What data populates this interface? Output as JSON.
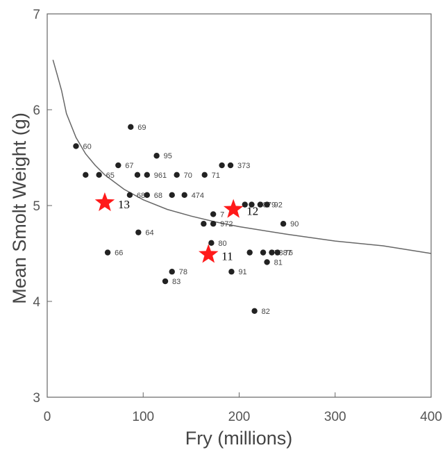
{
  "chart_data": {
    "type": "scatter",
    "xlabel": "Fry (millions)",
    "ylabel": "Mean Smolt Weight (g)",
    "xlim": [
      0,
      400
    ],
    "ylim": [
      3,
      7
    ],
    "x_ticks": [
      "0",
      "100",
      "200",
      "300",
      "400"
    ],
    "y_ticks": [
      "3",
      "4",
      "5",
      "6",
      "7"
    ],
    "grid": false,
    "points": [
      {
        "x": 87,
        "y": 5.82,
        "label": "69"
      },
      {
        "x": 30,
        "y": 5.62,
        "label": "60"
      },
      {
        "x": 114,
        "y": 5.52,
        "label": "95"
      },
      {
        "x": 74,
        "y": 5.42,
        "label": "67"
      },
      {
        "x": 182,
        "y": 5.42,
        "label": ""
      },
      {
        "x": 191,
        "y": 5.42,
        "label": "373"
      },
      {
        "x": 40,
        "y": 5.32,
        "label": ""
      },
      {
        "x": 54,
        "y": 5.32,
        "label": "65"
      },
      {
        "x": 94,
        "y": 5.32,
        "label": ""
      },
      {
        "x": 104,
        "y": 5.32,
        "label": "961"
      },
      {
        "x": 135,
        "y": 5.32,
        "label": "70"
      },
      {
        "x": 164,
        "y": 5.32,
        "label": "71"
      },
      {
        "x": 86,
        "y": 5.11,
        "label": "68"
      },
      {
        "x": 104,
        "y": 5.11,
        "label": "68"
      },
      {
        "x": 130,
        "y": 5.11,
        "label": ""
      },
      {
        "x": 143,
        "y": 5.11,
        "label": "474"
      },
      {
        "x": 206,
        "y": 5.01,
        "label": ""
      },
      {
        "x": 213,
        "y": 5.01,
        "label": "78"
      },
      {
        "x": 222,
        "y": 5.01,
        "label": "79"
      },
      {
        "x": 229,
        "y": 5.01,
        "label": "92"
      },
      {
        "x": 173,
        "y": 4.91,
        "label": "7"
      },
      {
        "x": 163,
        "y": 4.81,
        "label": ""
      },
      {
        "x": 173,
        "y": 4.81,
        "label": "972"
      },
      {
        "x": 246,
        "y": 4.81,
        "label": "90"
      },
      {
        "x": 95,
        "y": 4.72,
        "label": "64"
      },
      {
        "x": 171,
        "y": 4.61,
        "label": "80"
      },
      {
        "x": 63,
        "y": 4.51,
        "label": "66"
      },
      {
        "x": 211,
        "y": 4.51,
        "label": ""
      },
      {
        "x": 225,
        "y": 4.51,
        "label": "77"
      },
      {
        "x": 234,
        "y": 4.51,
        "label": "887"
      },
      {
        "x": 240,
        "y": 4.51,
        "label": "76"
      },
      {
        "x": 229,
        "y": 4.41,
        "label": "81"
      },
      {
        "x": 130,
        "y": 4.31,
        "label": "78"
      },
      {
        "x": 192,
        "y": 4.31,
        "label": "91"
      },
      {
        "x": 123,
        "y": 4.21,
        "label": "83"
      },
      {
        "x": 216,
        "y": 3.9,
        "label": "82"
      }
    ],
    "highlights": [
      {
        "x": 60,
        "y": 5.03,
        "label": "13"
      },
      {
        "x": 194,
        "y": 4.96,
        "label": "12"
      },
      {
        "x": 168,
        "y": 4.49,
        "label": "11"
      }
    ],
    "curve": {
      "x": [
        6,
        10,
        15,
        20,
        30,
        40,
        50,
        60,
        80,
        100,
        125,
        150,
        175,
        200,
        250,
        300,
        350,
        400
      ],
      "y": [
        6.52,
        6.38,
        6.2,
        5.96,
        5.71,
        5.54,
        5.42,
        5.32,
        5.17,
        5.06,
        4.96,
        4.89,
        4.83,
        4.78,
        4.7,
        4.63,
        4.58,
        4.5
      ]
    },
    "colors": {
      "points": "#222222",
      "highlight": "#ff1a1a",
      "curve": "#666666",
      "axis": "#666666"
    }
  }
}
